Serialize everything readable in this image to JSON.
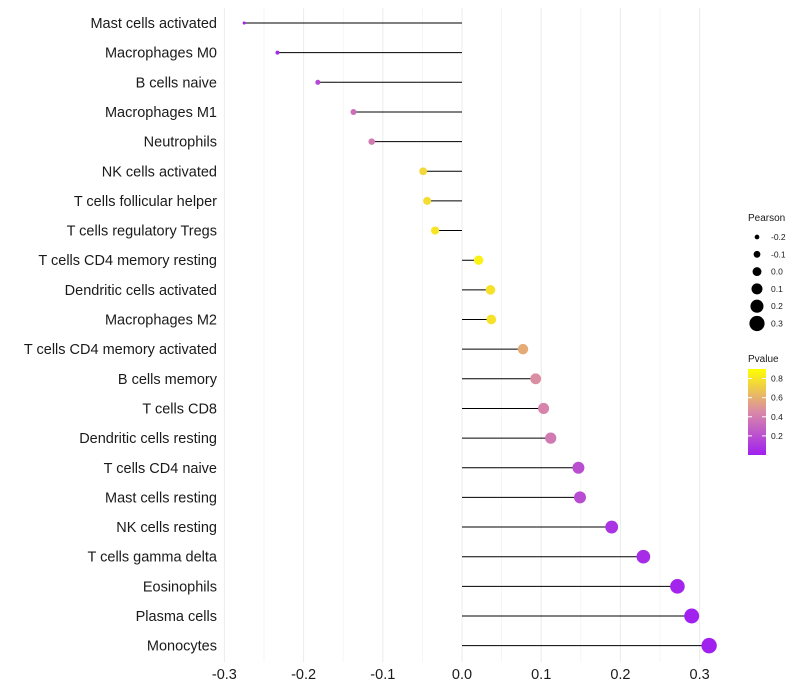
{
  "chart_data": {
    "type": "lollipop",
    "title": "",
    "xlabel": "",
    "ylabel": "",
    "xlim": [
      -0.3,
      0.32
    ],
    "x_ticks": [
      -0.3,
      -0.2,
      -0.1,
      0.0,
      0.1,
      0.2,
      0.3
    ],
    "x_tick_labels": [
      "-0.3",
      "-0.2",
      "-0.1",
      "0.0",
      "0.1",
      "0.2",
      "0.3"
    ],
    "grid": "vertical",
    "categories": [
      "Mast cells activated",
      "Macrophages M0",
      "B cells naive",
      "Macrophages M1",
      "Neutrophils",
      "NK cells activated",
      "T cells follicular helper",
      "T cells regulatory  Tregs ",
      "T cells CD4 memory resting",
      "Dendritic cells activated",
      "Macrophages M2",
      "T cells CD4 memory activated",
      "B cells memory",
      "T cells CD8",
      "Dendritic cells resting",
      "T cells CD4 naive",
      "Mast cells resting",
      "NK cells resting",
      "T cells gamma delta",
      "Eosinophils",
      "Plasma cells",
      "Monocytes"
    ],
    "values": [
      -0.275,
      -0.233,
      -0.182,
      -0.137,
      -0.114,
      -0.049,
      -0.044,
      -0.034,
      0.021,
      0.036,
      0.037,
      0.077,
      0.093,
      0.103,
      0.112,
      0.147,
      0.149,
      0.189,
      0.229,
      0.272,
      0.29,
      0.312
    ],
    "pvalues": [
      0.01,
      0.05,
      0.17,
      0.33,
      0.38,
      0.75,
      0.77,
      0.8,
      0.85,
      0.79,
      0.79,
      0.58,
      0.47,
      0.43,
      0.38,
      0.2,
      0.19,
      0.08,
      0.05,
      0.02,
      0.01,
      0.005
    ],
    "size_legend": {
      "title": "Pearson",
      "values": [
        -0.2,
        -0.1,
        0.0,
        0.1,
        0.2,
        0.3
      ],
      "labels": [
        "-0.2",
        "-0.1",
        "0.0",
        "0.1",
        "0.2",
        "0.3"
      ]
    },
    "color_legend": {
      "title": "Pvalue",
      "ticks": [
        0.2,
        0.4,
        0.6,
        0.8
      ],
      "tick_labels": [
        "0.2",
        "0.4",
        "0.6",
        "0.8"
      ],
      "range": [
        0.0,
        0.9
      ],
      "low_color": "#a020f0",
      "mid_color": "#d989a8",
      "high_color": "#ffff00"
    },
    "legend_position": "right"
  }
}
